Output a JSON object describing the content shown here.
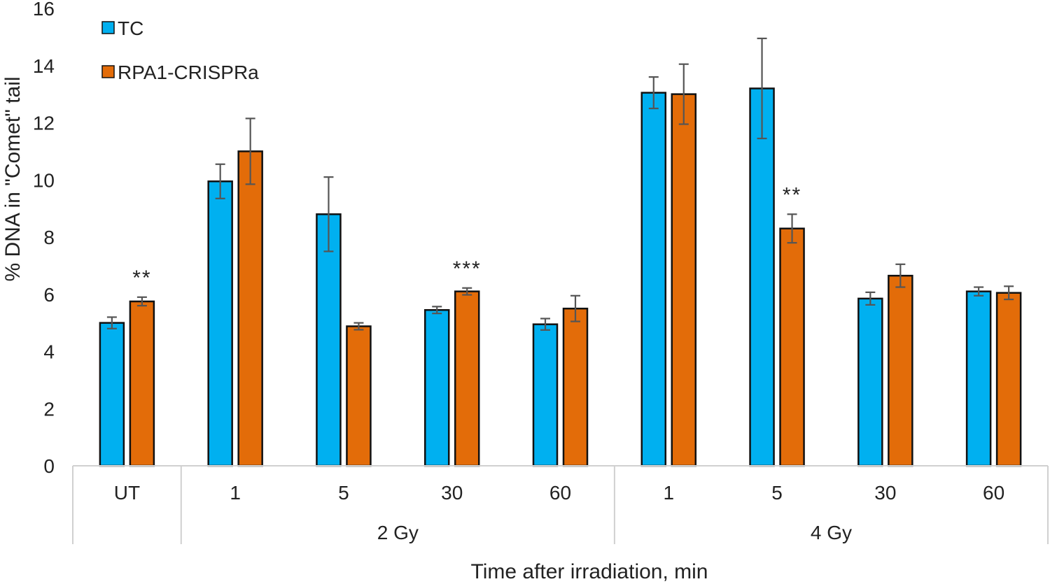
{
  "chart_data": {
    "type": "bar",
    "ylabel": "% DNA in \"Comet\" tail",
    "xlabel": "Time after irradiation, min",
    "ylim": [
      0,
      16
    ],
    "yticks": [
      0,
      2,
      4,
      6,
      8,
      10,
      12,
      14,
      16
    ],
    "categories": [
      "UT",
      "1",
      "5",
      "30",
      "60",
      "1",
      "5",
      "30",
      "60"
    ],
    "groups": [
      {
        "label": "",
        "start": 0,
        "end": 0
      },
      {
        "label": "2 Gy",
        "start": 1,
        "end": 4
      },
      {
        "label": "4 Gy",
        "start": 5,
        "end": 8
      }
    ],
    "series": [
      {
        "name": "TC",
        "color": "#00B0F0",
        "values": [
          5.0,
          9.95,
          8.8,
          5.45,
          4.95,
          13.05,
          13.2,
          5.85,
          6.1
        ],
        "errors": [
          0.2,
          0.6,
          1.3,
          0.12,
          0.2,
          0.55,
          1.75,
          0.22,
          0.15
        ]
      },
      {
        "name": "RPA1-CRISPRa",
        "color": "#E36C09",
        "values": [
          5.75,
          11.0,
          4.88,
          6.1,
          5.5,
          13.0,
          8.3,
          6.65,
          6.05
        ],
        "errors": [
          0.15,
          1.15,
          0.12,
          0.12,
          0.45,
          1.05,
          0.5,
          0.4,
          0.23
        ]
      }
    ],
    "annotations": [
      {
        "category_index": 0,
        "series_index": 1,
        "text": "**"
      },
      {
        "category_index": 3,
        "series_index": 1,
        "text": "***"
      },
      {
        "category_index": 6,
        "series_index": 1,
        "text": "**"
      }
    ],
    "legend_position": "top-left",
    "grid": false
  }
}
